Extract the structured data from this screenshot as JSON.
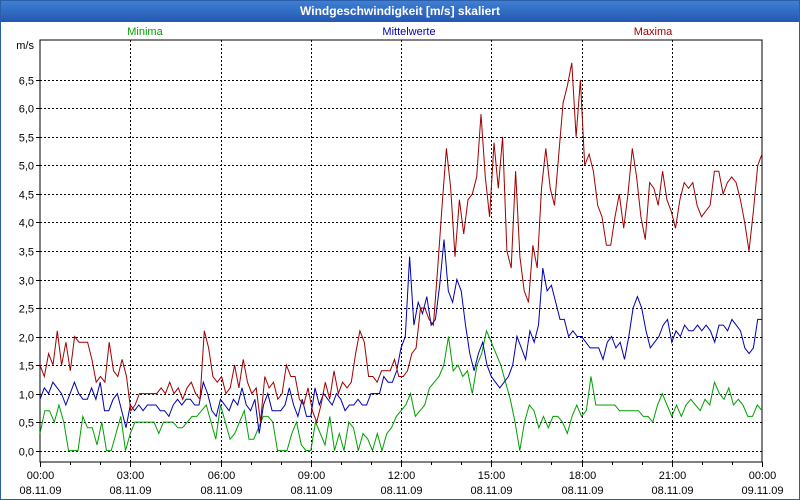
{
  "window": {
    "title": "Windgeschwindigkeit [m/s] skaliert"
  },
  "colors": {
    "titlebar": "#2a62c0",
    "minima": "#00a000",
    "mittelwerte": "#0000b0",
    "maxima": "#a00000",
    "grid": "#000000"
  },
  "chart_data": {
    "type": "line",
    "ylabel": "m/s",
    "ylim": [
      -0.2,
      7.2
    ],
    "yticks": [
      0.0,
      0.5,
      1.0,
      1.5,
      2.0,
      2.5,
      3.0,
      3.5,
      4.0,
      4.5,
      5.0,
      5.5,
      6.0,
      6.5
    ],
    "ytick_labels": [
      "0,0",
      "0,5",
      "1,0",
      "1,5",
      "2,0",
      "2,5",
      "3,0",
      "3,5",
      "4,0",
      "4,5",
      "5,0",
      "5,5",
      "6,0",
      "6,5"
    ],
    "xlim": [
      0,
      24
    ],
    "xticks": [
      0,
      3,
      6,
      9,
      12,
      15,
      18,
      21,
      24
    ],
    "xtick_labels": [
      {
        "time": "00:00",
        "date": "08.11.09"
      },
      {
        "time": "03:00",
        "date": "08.11.09"
      },
      {
        "time": "06:00",
        "date": "08.11.09"
      },
      {
        "time": "09:00",
        "date": "08.11.09"
      },
      {
        "time": "12:00",
        "date": "08.11.09"
      },
      {
        "time": "15:00",
        "date": "08.11.09"
      },
      {
        "time": "18:00",
        "date": "08.11.09"
      },
      {
        "time": "21:00",
        "date": "08.11.09"
      },
      {
        "time": "00:00",
        "date": "09.11.09"
      }
    ],
    "grid": "dashed vertical at each 3h and horizontal at each 0.5",
    "legend_position": "top",
    "x_unit": "hours",
    "series": [
      {
        "name": "Minima",
        "color": "#00a000",
        "values": [
          0.3,
          0.7,
          0.7,
          0.5,
          0.8,
          0.5,
          0.0,
          0.0,
          0.0,
          0.6,
          0.4,
          0.4,
          0.1,
          0.5,
          0.0,
          0.0,
          0.3,
          0.6,
          0.0,
          0.3,
          0.5,
          0.5,
          0.5,
          0.5,
          0.5,
          0.3,
          0.5,
          0.5,
          0.5,
          0.4,
          0.4,
          0.5,
          0.6,
          0.6,
          0.7,
          0.8,
          0.5,
          0.2,
          0.8,
          0.5,
          0.2,
          0.3,
          0.5,
          0.7,
          0.2,
          0.2,
          0.4,
          0.6,
          0.6,
          0.5,
          0.0,
          0.0,
          0.0,
          0.3,
          0.5,
          0.1,
          0.0,
          0.0,
          0.5,
          0.3,
          0.1,
          0.6,
          0.0,
          0.3,
          0.0,
          0.5,
          0.4,
          0.0,
          0.3,
          0.2,
          0.0,
          0.3,
          0.0,
          0.3,
          0.4,
          0.6,
          0.7,
          0.8,
          1.0,
          0.6,
          0.7,
          0.8,
          1.1,
          1.2,
          1.3,
          1.5,
          2.0,
          1.4,
          1.5,
          1.3,
          1.4,
          1.0,
          1.5,
          1.7,
          2.1,
          1.9,
          1.7,
          1.5,
          1.2,
          0.9,
          0.5,
          0.0,
          0.5,
          0.8,
          0.7,
          0.4,
          0.6,
          0.4,
          0.6,
          0.6,
          0.5,
          0.3,
          0.6,
          0.8,
          0.6,
          0.7,
          1.3,
          0.8,
          0.8,
          0.8,
          0.8,
          0.8,
          0.7,
          0.7,
          0.7,
          0.7,
          0.7,
          0.6,
          0.6,
          0.5,
          0.8,
          1.0,
          0.8,
          0.6,
          0.8,
          0.6,
          0.8,
          0.9,
          0.8,
          0.7,
          0.9,
          0.8,
          1.2,
          1.0,
          0.9,
          1.1,
          0.8,
          0.9,
          0.8,
          0.6,
          0.6,
          0.8,
          0.7
        ]
      },
      {
        "name": "Mittelwerte",
        "color": "#0000b0",
        "values": [
          0.9,
          1.1,
          1.0,
          1.2,
          1.1,
          1.0,
          0.8,
          1.0,
          1.2,
          1.0,
          0.9,
          0.9,
          1.1,
          0.9,
          1.2,
          0.7,
          0.7,
          0.9,
          1.0,
          0.7,
          0.4,
          0.8,
          0.7,
          0.8,
          0.7,
          0.8,
          0.8,
          0.8,
          0.7,
          0.7,
          0.6,
          0.8,
          0.9,
          0.8,
          0.9,
          0.9,
          0.8,
          0.8,
          1.2,
          1.0,
          0.7,
          0.6,
          0.9,
          0.8,
          0.7,
          0.9,
          0.8,
          1.1,
          0.8,
          0.7,
          0.9,
          0.3,
          0.8,
          1.0,
          0.7,
          0.7,
          0.7,
          0.8,
          1.1,
          0.8,
          0.6,
          0.9,
          0.6,
          0.6,
          1.1,
          0.8,
          1.0,
          0.9,
          0.8,
          1.0,
          0.9,
          0.7,
          0.8,
          0.8,
          0.9,
          0.8,
          0.8,
          1.0,
          1.0,
          1.0,
          1.3,
          1.2,
          1.2,
          1.4,
          1.8,
          2.0,
          3.4,
          2.2,
          2.6,
          2.4,
          2.7,
          2.2,
          2.3,
          2.9,
          3.7,
          2.8,
          2.6,
          3.0,
          2.8,
          2.2,
          1.7,
          1.4,
          1.7,
          1.9,
          1.5,
          1.3,
          1.2,
          1.1,
          1.2,
          1.3,
          1.5,
          2.0,
          1.8,
          1.6,
          2.1,
          1.9,
          2.2,
          3.2,
          2.8,
          2.9,
          2.6,
          2.3,
          2.3,
          2.0,
          2.1,
          2.0,
          2.0,
          1.9,
          1.8,
          1.8,
          1.8,
          1.6,
          1.9,
          2.0,
          1.8,
          1.9,
          1.6,
          2.0,
          2.5,
          2.7,
          2.5,
          2.1,
          1.8,
          1.9,
          2.0,
          2.2,
          2.3,
          1.9,
          2.1,
          2.0,
          2.2,
          2.1,
          2.1,
          2.2,
          2.1,
          2.2,
          2.1,
          1.9,
          2.2,
          2.2,
          2.1,
          2.3,
          2.2,
          2.1,
          1.8,
          1.7,
          1.8,
          2.3,
          2.3
        ]
      },
      {
        "name": "Maxima",
        "color": "#a00000",
        "values": [
          1.5,
          1.3,
          1.7,
          1.5,
          2.1,
          1.5,
          1.9,
          1.4,
          2.0,
          1.9,
          1.9,
          1.9,
          1.6,
          1.2,
          1.3,
          1.2,
          1.9,
          1.4,
          1.3,
          1.6,
          1.3,
          0.7,
          0.8,
          1.0,
          1.0,
          1.0,
          1.0,
          1.0,
          1.1,
          1.0,
          1.2,
          1.0,
          1.1,
          0.9,
          1.1,
          1.2,
          1.0,
          0.9,
          2.1,
          1.8,
          1.3,
          1.2,
          1.3,
          1.0,
          1.1,
          1.5,
          1.1,
          1.6,
          1.2,
          1.0,
          1.1,
          0.5,
          1.3,
          1.1,
          1.2,
          0.9,
          1.0,
          1.5,
          1.3,
          1.3,
          0.9,
          0.8,
          1.1,
          0.7,
          0.5,
          0.8,
          1.2,
          0.9,
          1.4,
          1.0,
          1.2,
          1.1,
          1.2,
          1.7,
          2.1,
          1.9,
          1.3,
          1.3,
          1.2,
          1.4,
          1.4,
          1.4,
          1.6,
          1.3,
          1.3,
          1.4,
          1.7,
          1.8,
          2.5,
          2.5,
          2.3,
          2.2,
          3.2,
          4.3,
          5.3,
          4.6,
          3.4,
          4.4,
          3.8,
          4.4,
          4.5,
          4.8,
          5.9,
          4.8,
          4.1,
          5.4,
          4.6,
          5.5,
          3.5,
          3.2,
          4.9,
          3.4,
          2.8,
          2.6,
          3.6,
          3.2,
          4.6,
          5.3,
          4.6,
          4.3,
          5.2,
          6.1,
          6.4,
          6.8,
          5.5,
          6.5,
          5.0,
          5.2,
          4.9,
          4.3,
          4.1,
          3.6,
          3.6,
          4.1,
          4.5,
          3.9,
          4.5,
          5.3,
          4.8,
          4.1,
          3.7,
          4.7,
          4.6,
          4.3,
          4.9,
          4.4,
          4.2,
          3.9,
          4.4,
          4.7,
          4.6,
          4.7,
          4.3,
          4.1,
          4.2,
          4.3,
          4.9,
          4.9,
          4.5,
          4.7,
          4.8,
          4.7,
          4.4,
          4.0,
          3.5,
          4.2,
          5.0,
          5.2
        ]
      }
    ]
  }
}
